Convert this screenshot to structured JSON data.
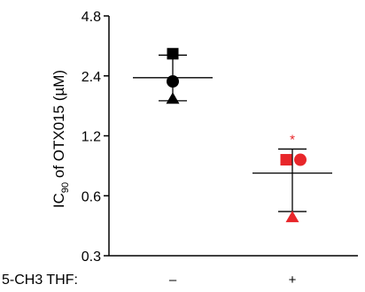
{
  "chart_data": {
    "type": "scatter",
    "ylabel_main": "IC",
    "ylabel_sub": "90",
    "ylabel_rest": " of OTX015 (µM)",
    "yscale": "log2",
    "ylim": [
      0.3,
      4.8
    ],
    "yticks": [
      0.3,
      0.6,
      1.2,
      2.4,
      4.8
    ],
    "ytick_labels": [
      "0.3",
      "0.6",
      "1.2",
      "2.4",
      "4.8"
    ],
    "row_label": "5-CH3 THF:",
    "categories": [
      "–",
      "+"
    ],
    "significance_mark": "*",
    "colors": {
      "minus": "#000000",
      "plus": "#e8262a",
      "axis": "#000000"
    },
    "groups": [
      {
        "category": "–",
        "color": "#000000",
        "mean": 2.35,
        "sd_upper": 3.05,
        "sd_lower": 1.8,
        "points": [
          {
            "marker": "square",
            "value": 3.1
          },
          {
            "marker": "circle",
            "value": 2.25
          },
          {
            "marker": "triangle",
            "value": 1.85
          }
        ]
      },
      {
        "category": "+",
        "color": "#e8262a",
        "mean": 0.78,
        "sd_upper": 1.03,
        "sd_lower": 0.5,
        "points": [
          {
            "marker": "square",
            "value": 0.91
          },
          {
            "marker": "circle",
            "value": 0.91
          },
          {
            "marker": "triangle",
            "value": 0.47
          }
        ]
      }
    ]
  }
}
